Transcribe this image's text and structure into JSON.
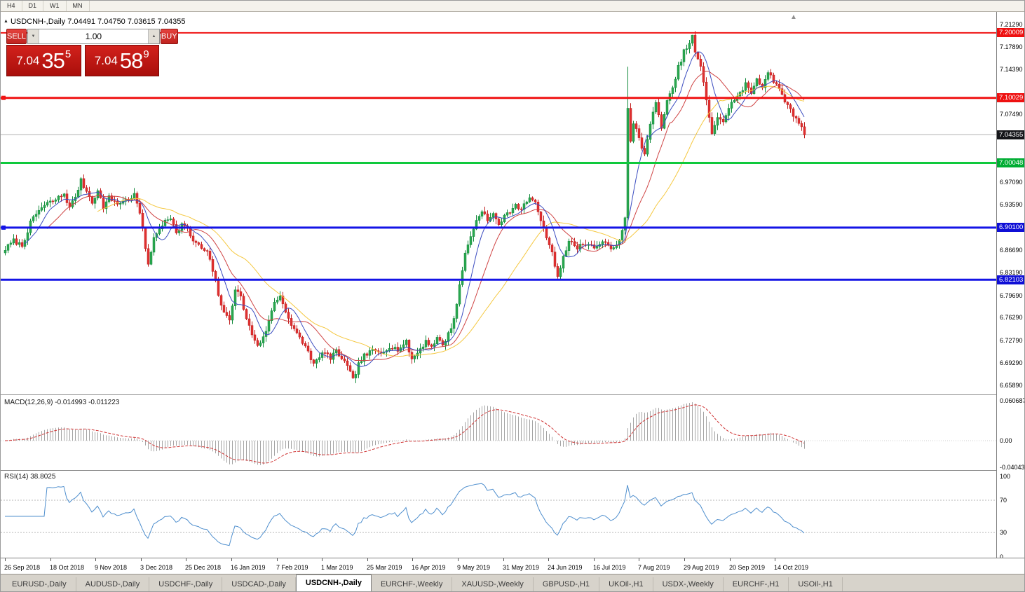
{
  "toolbar": {
    "timeframes": [
      "H4",
      "D1",
      "W1",
      "MN"
    ]
  },
  "chart_header": {
    "title": "USDCNH-,Daily  7.04491 7.04750 7.03615 7.04355"
  },
  "trade_widget": {
    "sell_label": "SELL",
    "buy_label": "BUY",
    "volume": "1.00",
    "sell_price": {
      "main": "7.04",
      "pips": "35",
      "point": "5"
    },
    "buy_price": {
      "main": "7.04",
      "pips": "58",
      "point": "9"
    }
  },
  "colors": {
    "up_fill": "#2aa84f",
    "up_stroke": "#128a3c",
    "down_fill": "#e03030",
    "down_stroke": "#c01f1f",
    "ma_fast": "#3b4cc0",
    "ma_mid": "#cf4444",
    "ma_slow": "#f5c840",
    "macd_hist": "#a4a4a4",
    "macd_signal": "#d03535",
    "rsi_line": "#4f8fce",
    "current_price_line": "#b0b0b0"
  },
  "chart_data": {
    "type": "candlestick",
    "symbol": "USDCNH-",
    "timeframe": "Daily",
    "ohlc_current": {
      "o": 7.04491,
      "h": 7.0475,
      "l": 7.03615,
      "c": 7.04355
    },
    "candle_count": 286,
    "price_axis": {
      "labels": [
        7.2129,
        7.1789,
        7.1439,
        7.0749,
        6.9709,
        6.9359,
        6.8669,
        6.8319,
        6.7969,
        6.7629,
        6.7279,
        6.6929,
        6.6589
      ],
      "badges": [
        {
          "price": 7.20009,
          "bg": "#ee1111"
        },
        {
          "price": 7.10029,
          "bg": "#ee1111"
        },
        {
          "price": 7.04355,
          "bg": "#15161a"
        },
        {
          "price": 7.00048,
          "bg": "#00ad33"
        },
        {
          "price": 6.901,
          "bg": "#0f0fd6"
        },
        {
          "price": 6.82103,
          "bg": "#0f0fd6"
        }
      ]
    },
    "levels": [
      {
        "price": 7.20009,
        "color": "#f01414",
        "thickness": 2,
        "marker": false
      },
      {
        "price": 7.10029,
        "color": "#f01414",
        "thickness": 3,
        "marker": true
      },
      {
        "price": 7.00048,
        "color": "#0fc93c",
        "thickness": 3,
        "marker": false
      },
      {
        "price": 6.901,
        "color": "#1414e6",
        "thickness": 3,
        "marker": true
      },
      {
        "price": 6.82103,
        "color": "#1414e6",
        "thickness": 3,
        "marker": false
      }
    ],
    "moving_averages": [
      {
        "name": "fast",
        "period": 8
      },
      {
        "name": "medium",
        "period": 16
      },
      {
        "name": "slow",
        "period": 34
      }
    ],
    "anchors": [
      [
        0,
        6.868
      ],
      [
        3,
        6.881
      ],
      [
        6,
        6.873
      ],
      [
        9,
        6.908
      ],
      [
        12,
        6.928
      ],
      [
        15,
        6.938
      ],
      [
        18,
        6.944
      ],
      [
        21,
        6.953
      ],
      [
        23,
        6.931
      ],
      [
        25,
        6.949
      ],
      [
        27,
        6.973
      ],
      [
        29,
        6.957
      ],
      [
        31,
        6.941
      ],
      [
        33,
        6.957
      ],
      [
        35,
        6.933
      ],
      [
        37,
        6.947
      ],
      [
        40,
        6.938
      ],
      [
        43,
        6.943
      ],
      [
        46,
        6.951
      ],
      [
        48,
        6.924
      ],
      [
        50,
        6.869
      ],
      [
        51,
        6.847
      ],
      [
        53,
        6.883
      ],
      [
        55,
        6.899
      ],
      [
        57,
        6.913
      ],
      [
        59,
        6.918
      ],
      [
        61,
        6.891
      ],
      [
        63,
        6.907
      ],
      [
        65,
        6.897
      ],
      [
        67,
        6.881
      ],
      [
        70,
        6.869
      ],
      [
        72,
        6.863
      ],
      [
        74,
        6.835
      ],
      [
        76,
        6.799
      ],
      [
        78,
        6.768
      ],
      [
        80,
        6.761
      ],
      [
        82,
        6.807
      ],
      [
        84,
        6.794
      ],
      [
        86,
        6.761
      ],
      [
        88,
        6.737
      ],
      [
        90,
        6.721
      ],
      [
        92,
        6.731
      ],
      [
        94,
        6.757
      ],
      [
        96,
        6.787
      ],
      [
        98,
        6.796
      ],
      [
        100,
        6.774
      ],
      [
        102,
        6.751
      ],
      [
        104,
        6.737
      ],
      [
        106,
        6.725
      ],
      [
        108,
        6.711
      ],
      [
        110,
        6.691
      ],
      [
        112,
        6.701
      ],
      [
        114,
        6.712
      ],
      [
        116,
        6.699
      ],
      [
        118,
        6.711
      ],
      [
        120,
        6.701
      ],
      [
        122,
        6.687
      ],
      [
        124,
        6.667
      ],
      [
        126,
        6.691
      ],
      [
        128,
        6.704
      ],
      [
        131,
        6.712
      ],
      [
        134,
        6.709
      ],
      [
        137,
        6.719
      ],
      [
        140,
        6.714
      ],
      [
        143,
        6.725
      ],
      [
        145,
        6.699
      ],
      [
        147,
        6.709
      ],
      [
        150,
        6.727
      ],
      [
        152,
        6.719
      ],
      [
        154,
        6.731
      ],
      [
        156,
        6.721
      ],
      [
        158,
        6.737
      ],
      [
        160,
        6.761
      ],
      [
        162,
        6.811
      ],
      [
        164,
        6.861
      ],
      [
        166,
        6.889
      ],
      [
        168,
        6.911
      ],
      [
        170,
        6.929
      ],
      [
        172,
        6.911
      ],
      [
        174,
        6.921
      ],
      [
        176,
        6.907
      ],
      [
        178,
        6.917
      ],
      [
        180,
        6.927
      ],
      [
        182,
        6.937
      ],
      [
        184,
        6.929
      ],
      [
        186,
        6.941
      ],
      [
        188,
        6.947
      ],
      [
        190,
        6.927
      ],
      [
        192,
        6.897
      ],
      [
        194,
        6.877
      ],
      [
        196,
        6.844
      ],
      [
        197,
        6.827
      ],
      [
        199,
        6.857
      ],
      [
        201,
        6.879
      ],
      [
        204,
        6.871
      ],
      [
        207,
        6.877
      ],
      [
        210,
        6.871
      ],
      [
        213,
        6.877
      ],
      [
        216,
        6.871
      ],
      [
        219,
        6.879
      ],
      [
        221,
        6.914
      ],
      [
        222,
        7.083
      ],
      [
        223,
        7.032
      ],
      [
        224,
        7.063
      ],
      [
        226,
        7.041
      ],
      [
        228,
        7.011
      ],
      [
        230,
        7.061
      ],
      [
        232,
        7.091
      ],
      [
        234,
        7.057
      ],
      [
        236,
        7.094
      ],
      [
        238,
        7.114
      ],
      [
        240,
        7.147
      ],
      [
        242,
        7.171
      ],
      [
        244,
        7.184
      ],
      [
        245,
        7.194
      ],
      [
        246,
        7.171
      ],
      [
        248,
        7.147
      ],
      [
        250,
        7.097
      ],
      [
        252,
        7.047
      ],
      [
        254,
        7.071
      ],
      [
        256,
        7.061
      ],
      [
        258,
        7.087
      ],
      [
        260,
        7.097
      ],
      [
        262,
        7.107
      ],
      [
        264,
        7.121
      ],
      [
        266,
        7.107
      ],
      [
        268,
        7.131
      ],
      [
        270,
        7.117
      ],
      [
        272,
        7.141
      ],
      [
        274,
        7.127
      ],
      [
        276,
        7.111
      ],
      [
        278,
        7.097
      ],
      [
        280,
        7.081
      ],
      [
        282,
        7.067
      ],
      [
        284,
        7.057
      ],
      [
        285,
        7.0436
      ]
    ],
    "macd": {
      "title_text": "MACD(12,26,9) -0.014993 -0.011223",
      "params": [
        12,
        26,
        9
      ],
      "value": -0.014993,
      "signal": -0.011223,
      "scale_labels": [
        {
          "v": 0.060687,
          "text": "0.060687"
        },
        {
          "v": 0,
          "text": "0.00"
        },
        {
          "v": -0.040432,
          "text": "-0.040432"
        }
      ]
    },
    "rsi": {
      "title_text": "RSI(14) 38.8025",
      "period": 14,
      "value": 38.8025,
      "scale_labels": [
        100,
        70,
        30,
        0
      ],
      "levels": [
        70,
        30
      ]
    },
    "dates": [
      "26 Sep 2018",
      "18 Oct 2018",
      "9 Nov 2018",
      "3 Dec 2018",
      "25 Dec 2018",
      "16 Jan 2019",
      "7 Feb 2019",
      "1 Mar 2019",
      "25 Mar 2019",
      "16 Apr 2019",
      "9 May 2019",
      "31 May 2019",
      "24 Jun 2019",
      "16 Jul 2019",
      "7 Aug 2019",
      "29 Aug 2019",
      "20 Sep 2019",
      "14 Oct 2019"
    ]
  },
  "bottom_tabs": [
    {
      "label": "EURUSD-,Daily"
    },
    {
      "label": "AUDUSD-,Daily"
    },
    {
      "label": "USDCHF-,Daily"
    },
    {
      "label": "USDCAD-,Daily"
    },
    {
      "label": "USDCNH-,Daily",
      "active": true
    },
    {
      "label": "EURCHF-,Weekly"
    },
    {
      "label": "XAUUSD-,Weekly"
    },
    {
      "label": "GBPUSD-,H1"
    },
    {
      "label": "UKOil-,H1"
    },
    {
      "label": "USDX-,Weekly"
    },
    {
      "label": "EURCHF-,H1"
    },
    {
      "label": "USOil-,H1"
    }
  ]
}
